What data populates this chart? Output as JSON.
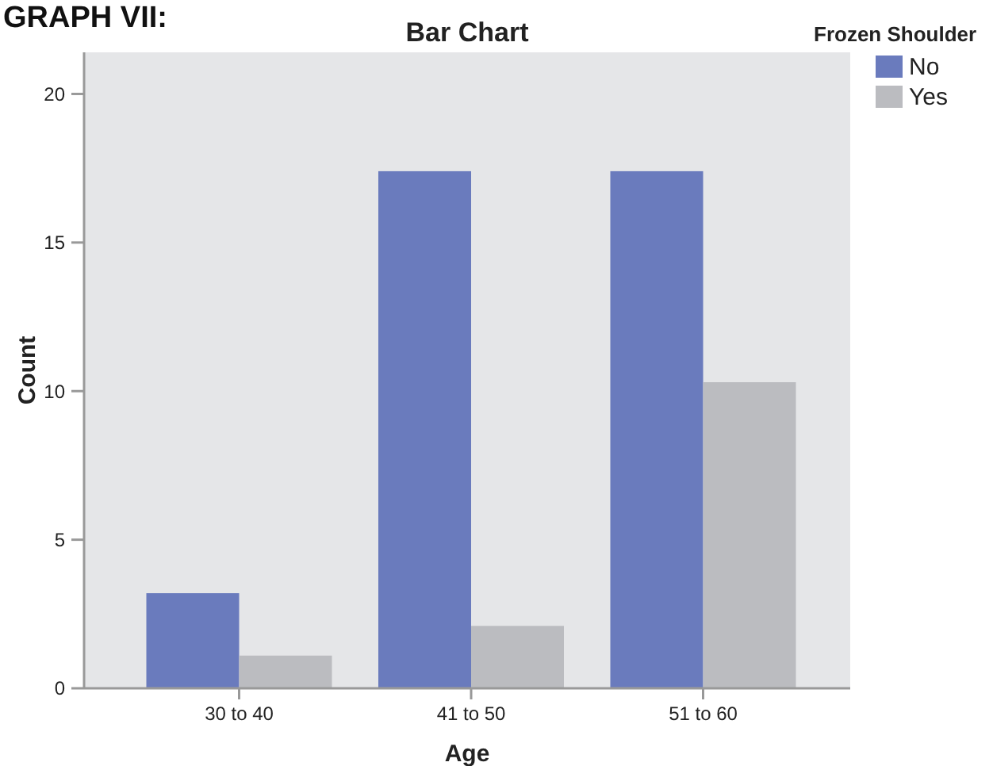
{
  "chart_data": {
    "type": "bar",
    "title": "Bar Chart",
    "xlabel": "Age",
    "ylabel": "Count",
    "legend_title": "Frozen Shoulder",
    "annotations": [
      "GRAPH VII:"
    ],
    "categories": [
      "30 to 40",
      "41 to 50",
      "51 to 60"
    ],
    "series": [
      {
        "name": "No",
        "color": "#6a7bbd",
        "values": [
          3.2,
          17.4,
          17.4
        ]
      },
      {
        "name": "Yes",
        "color": "#bbbcc0",
        "values": [
          1.1,
          2.1,
          10.3
        ]
      }
    ],
    "ylim": [
      0,
      21.4
    ],
    "yticks": [
      0,
      5,
      10,
      15,
      20
    ],
    "grid": false,
    "legend": "top right"
  }
}
